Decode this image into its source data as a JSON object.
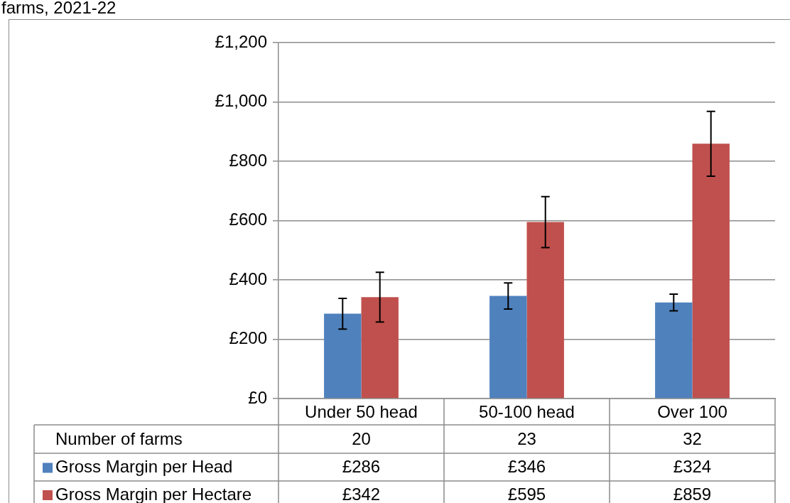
{
  "chart_data": {
    "type": "bar",
    "title": "farms, 2021-22",
    "categories": [
      "Under 50 head",
      "50-100 head",
      "Over 100"
    ],
    "series": [
      {
        "name": "Gross Margin per Head",
        "color": "#4f81bd",
        "values": [
          286,
          346,
          324
        ],
        "errors": [
          52,
          44,
          28
        ],
        "value_labels": [
          "£286",
          "£346",
          "£324"
        ]
      },
      {
        "name": "Gross Margin per Hectare",
        "color": "#c0504d",
        "values": [
          342,
          595,
          859
        ],
        "errors": [
          84,
          86,
          109
        ],
        "value_labels": [
          "£342",
          "£595",
          "£859"
        ]
      }
    ],
    "annotations": [
      "Number of farms",
      "20",
      "23",
      "32"
    ],
    "ylim": [
      0,
      1200
    ],
    "yticks": [
      {
        "value": 0,
        "label": "£0"
      },
      {
        "value": 200,
        "label": "£200"
      },
      {
        "value": 400,
        "label": "£400"
      },
      {
        "value": 600,
        "label": "£600"
      },
      {
        "value": 800,
        "label": "£800"
      },
      {
        "value": 1000,
        "label": "£1,000"
      },
      {
        "value": 1200,
        "label": "£1,200"
      }
    ],
    "grid": "y",
    "legend": "bottom"
  }
}
